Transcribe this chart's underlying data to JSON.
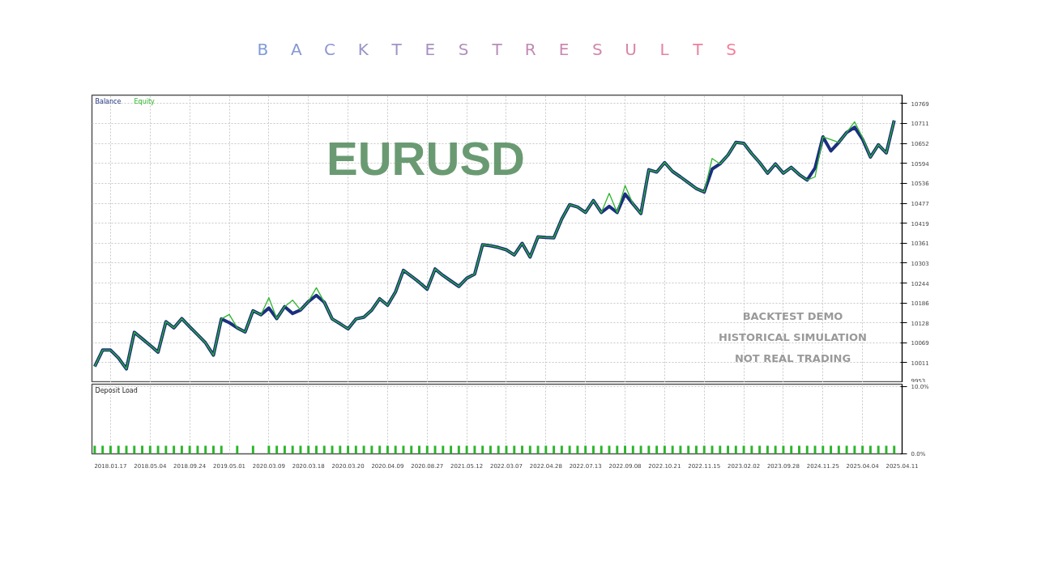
{
  "chart_data": [
    {
      "type": "line",
      "title": "B A C K T E S T R E S U L T S",
      "annotations": [
        "EURUSD",
        "BACKTEST DEMO",
        "HISTORICAL SIMULATION",
        "NOT REAL TRADING"
      ],
      "legend": "top left",
      "grid": true,
      "tick_labels": "y",
      "line_style": "solid",
      "categories": [
        null,
        null,
        "2018.01.17",
        null,
        null,
        null,
        null,
        "2018.05.04",
        null,
        null,
        null,
        null,
        "2018.09.24",
        null,
        null,
        null,
        null,
        "2019.05.01",
        null,
        null,
        null,
        null,
        "2020.03.09",
        null,
        null,
        null,
        null,
        "2020.03.18",
        null,
        null,
        null,
        null,
        "2020.03.20",
        null,
        null,
        null,
        null,
        "2020.04.09",
        null,
        null,
        null,
        null,
        "2020.08.27",
        null,
        null,
        null,
        null,
        "2021.05.12",
        null,
        null,
        null,
        null,
        "2022.03.07",
        null,
        null,
        null,
        null,
        "2022.04.28",
        null,
        null,
        null,
        null,
        "2022.07.13",
        null,
        null,
        null,
        null,
        "2022.09.08",
        null,
        null,
        null,
        null,
        "2022.10.21",
        null,
        null,
        null,
        null,
        "2022.11.15",
        null,
        null,
        null,
        null,
        "2023.02.02",
        null,
        null,
        null,
        null,
        "2023.09.28",
        null,
        null,
        null,
        null,
        "2024.11.25",
        null,
        null,
        null,
        null,
        "2025.04.04",
        null,
        null,
        null,
        null,
        "2025.04.11"
      ],
      "ylim": [
        9953,
        10793
      ],
      "yticks": [
        9953,
        10011,
        10069,
        10128,
        10186,
        10244,
        10303,
        10361,
        10419,
        10477,
        10536,
        10594,
        10652,
        10711,
        10769
      ],
      "series": [
        {
          "name": "Balance",
          "color": "#1b2f80",
          "values": [
            10000,
            10048,
            10048,
            10025,
            9993,
            10100,
            10081,
            10062,
            10042,
            10131,
            10113,
            10140,
            10116,
            10093,
            10069,
            10033,
            10139,
            10128,
            10113,
            10101,
            10163,
            10151,
            10171,
            10140,
            10175,
            10155,
            10165,
            10190,
            10208,
            10188,
            10139,
            10125,
            10110,
            10139,
            10144,
            10165,
            10198,
            10179,
            10218,
            10281,
            10264,
            10246,
            10226,
            10285,
            10266,
            10250,
            10234,
            10258,
            10270,
            10356,
            10353,
            10348,
            10341,
            10326,
            10360,
            10320,
            10379,
            10377,
            10376,
            10431,
            10473,
            10466,
            10450,
            10485,
            10450,
            10468,
            10450,
            10504,
            10475,
            10447,
            10575,
            10568,
            10596,
            10570,
            10554,
            10537,
            10520,
            10510,
            10577,
            10592,
            10618,
            10655,
            10652,
            10622,
            10596,
            10565,
            10592,
            10565,
            10582,
            10561,
            10545,
            10580,
            10671,
            10630,
            10655,
            10684,
            10699,
            10664,
            10612,
            10648,
            10624,
            10719,
            null
          ]
        },
        {
          "name": "Equity",
          "color": "#2cb52c",
          "values": [
            10000,
            10048,
            10048,
            10025,
            9993,
            10100,
            10081,
            10062,
            10042,
            10131,
            10113,
            10140,
            10116,
            10093,
            10069,
            10033,
            10139,
            10152,
            10113,
            10101,
            10163,
            10151,
            10201,
            10140,
            10175,
            10194,
            10165,
            10190,
            10230,
            10188,
            10139,
            10125,
            10110,
            10139,
            10144,
            10165,
            10198,
            10179,
            10218,
            10281,
            10264,
            10246,
            10226,
            10285,
            10266,
            10250,
            10234,
            10258,
            10270,
            10356,
            10353,
            10348,
            10341,
            10326,
            10360,
            10320,
            10379,
            10377,
            10376,
            10431,
            10473,
            10466,
            10450,
            10485,
            10450,
            10506,
            10450,
            10529,
            10475,
            10447,
            10575,
            10568,
            10596,
            10570,
            10554,
            10537,
            10520,
            10510,
            10608,
            10592,
            10618,
            10655,
            10652,
            10622,
            10596,
            10565,
            10592,
            10565,
            10582,
            10561,
            10545,
            10554,
            10671,
            10663,
            10655,
            10684,
            10715,
            10669,
            10612,
            10648,
            10624,
            10719,
            null
          ]
        }
      ]
    },
    {
      "type": "bar",
      "title": "Deposit Load",
      "color": "#2cb52c",
      "grid": true,
      "categories": [
        null,
        null,
        "2018.01.17",
        null,
        null,
        null,
        null,
        "2018.05.04",
        null,
        null,
        null,
        null,
        "2018.09.24",
        null,
        null,
        null,
        null,
        "2019.05.01",
        null,
        null,
        null,
        null,
        "2020.03.09",
        null,
        null,
        null,
        null,
        "2020.03.18",
        null,
        null,
        null,
        null,
        "2020.03.20",
        null,
        null,
        null,
        null,
        "2020.04.09",
        null,
        null,
        null,
        null,
        "2020.08.27",
        null,
        null,
        null,
        null,
        "2021.05.12",
        null,
        null,
        null,
        null,
        "2022.03.07",
        null,
        null,
        null,
        null,
        "2022.04.28",
        null,
        null,
        null,
        null,
        "2022.07.13",
        null,
        null,
        null,
        null,
        "2022.09.08",
        null,
        null,
        null,
        null,
        "2022.10.21",
        null,
        null,
        null,
        null,
        "2022.11.15",
        null,
        null,
        null,
        null,
        "2023.02.02",
        null,
        null,
        null,
        null,
        "2023.09.28",
        null,
        null,
        null,
        null,
        "2024.11.25",
        null,
        null,
        null,
        null,
        "2025.04.04",
        null,
        null,
        null,
        null,
        "2025.04.11"
      ],
      "ylim": [
        0,
        10.4
      ],
      "yticks": [
        {
          "value": 0,
          "label": "0.0%"
        },
        {
          "value": 10,
          "label": "10.0%"
        }
      ],
      "values": [
        1.2,
        1.2,
        1.2,
        1.2,
        1.2,
        1.2,
        1.2,
        1.2,
        1.2,
        1.2,
        1.2,
        1.2,
        1.2,
        1.2,
        1.2,
        1.2,
        1.2,
        null,
        1.2,
        null,
        1.2,
        null,
        1.2,
        1.2,
        1.2,
        1.2,
        1.2,
        1.2,
        1.2,
        1.2,
        1.2,
        1.2,
        1.2,
        1.2,
        1.2,
        1.2,
        1.2,
        1.2,
        1.2,
        1.2,
        1.2,
        1.2,
        1.2,
        1.2,
        1.2,
        1.2,
        1.2,
        1.2,
        1.2,
        1.2,
        1.2,
        1.2,
        1.2,
        1.2,
        1.2,
        1.2,
        1.2,
        1.2,
        1.2,
        1.2,
        1.2,
        1.2,
        1.2,
        1.2,
        1.2,
        1.2,
        1.2,
        1.2,
        1.2,
        1.2,
        1.2,
        1.2,
        1.2,
        1.2,
        1.2,
        1.2,
        1.2,
        1.2,
        1.2,
        1.2,
        1.2,
        1.2,
        1.2,
        1.2,
        1.2,
        1.2,
        1.2,
        1.2,
        1.2,
        1.2,
        1.2,
        1.2,
        1.2,
        1.2,
        1.2,
        1.2,
        1.2,
        1.2,
        1.2,
        1.2,
        1.2,
        1.2,
        null
      ]
    }
  ]
}
